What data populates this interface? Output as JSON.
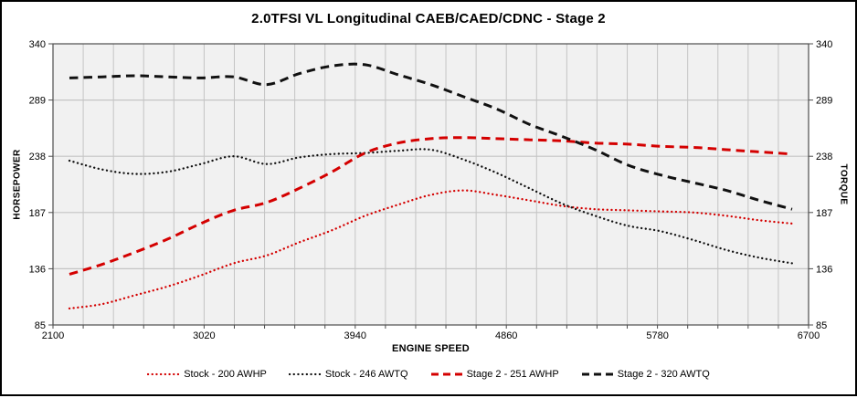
{
  "chart_data": {
    "type": "line",
    "title": "2.0TFSI VL Longitudinal CAEB/CAED/CDNC - Stage 2",
    "xlabel": "ENGINE SPEED",
    "ylabel_left": "HORSEPOWER",
    "ylabel_right": "TORQUE",
    "xlim": [
      2100,
      6700
    ],
    "ylim": [
      85,
      340
    ],
    "x_ticks": [
      2100,
      3020,
      3940,
      4860,
      5780,
      6700
    ],
    "y_ticks": [
      85,
      136,
      187,
      238,
      289,
      340
    ],
    "x_minor_step": 184,
    "grid": true,
    "legend_position": "bottom",
    "colors": {
      "red_series": "#D40000",
      "black_series": "#111111",
      "gridline": "#C4C4C4",
      "plot_background": "#F1F1F1",
      "axis_line": "#4d4d4d"
    },
    "x": [
      2200,
      2400,
      2600,
      2800,
      3000,
      3200,
      3400,
      3600,
      3800,
      4000,
      4200,
      4400,
      4600,
      4800,
      5000,
      5200,
      5400,
      5600,
      5800,
      6000,
      6200,
      6400,
      6600
    ],
    "series": [
      {
        "name": "Stock - 200 AWHP",
        "color_key": "red_series",
        "style": "dotted",
        "values": [
          100,
          104,
          112,
          120,
          130,
          141,
          148,
          160,
          171,
          184,
          194,
          203,
          207,
          203,
          198,
          193,
          190,
          189,
          188,
          187,
          184,
          180,
          177
        ]
      },
      {
        "name": "Stock - 246 AWTQ",
        "color_key": "black_series",
        "style": "dotted",
        "values": [
          234,
          226,
          222,
          224,
          231,
          238,
          231,
          237,
          240,
          241,
          243,
          244,
          235,
          223,
          209,
          195,
          184,
          175,
          170,
          162,
          153,
          146,
          141
        ]
      },
      {
        "name": "Stage 2 - 251 AWHP",
        "color_key": "red_series",
        "style": "dashed",
        "values": [
          131,
          140,
          151,
          163,
          177,
          189,
          196,
          209,
          224,
          241,
          250,
          254,
          255,
          254,
          253,
          252,
          250,
          249,
          247,
          246,
          244,
          242,
          240
        ]
      },
      {
        "name": "Stage 2 - 320 AWTQ",
        "color_key": "black_series",
        "style": "dashed",
        "values": [
          309,
          310,
          311,
          310,
          309,
          310,
          303,
          313,
          320,
          321,
          312,
          303,
          292,
          281,
          267,
          256,
          244,
          230,
          221,
          214,
          207,
          198,
          190
        ]
      }
    ]
  }
}
